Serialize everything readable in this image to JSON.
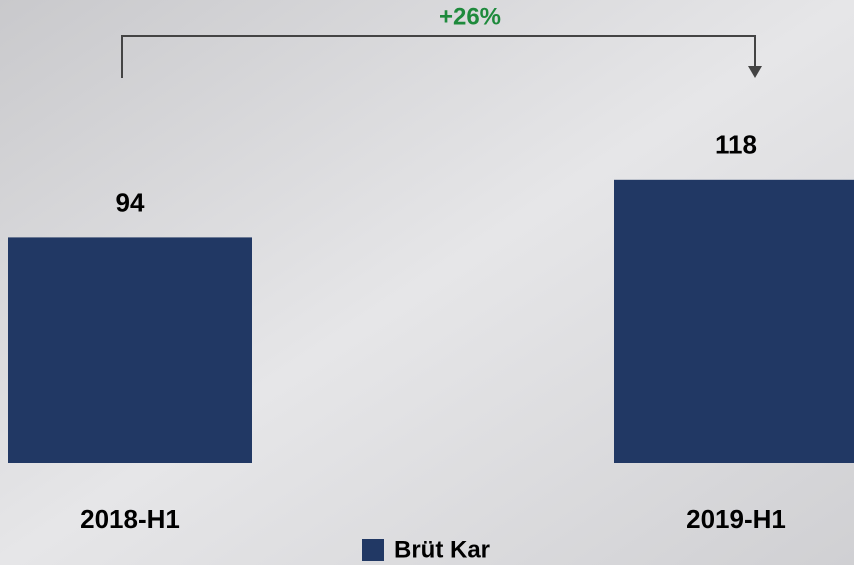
{
  "chart_data": {
    "type": "bar",
    "categories": [
      "2018-H1",
      "2019-H1"
    ],
    "series": [
      {
        "name": "Brüt Kar",
        "color": "#213864",
        "values": [
          94,
          118
        ]
      }
    ],
    "annotation": {
      "text": "+26%",
      "color": "#1e8a3c"
    },
    "legend": "bottom"
  }
}
